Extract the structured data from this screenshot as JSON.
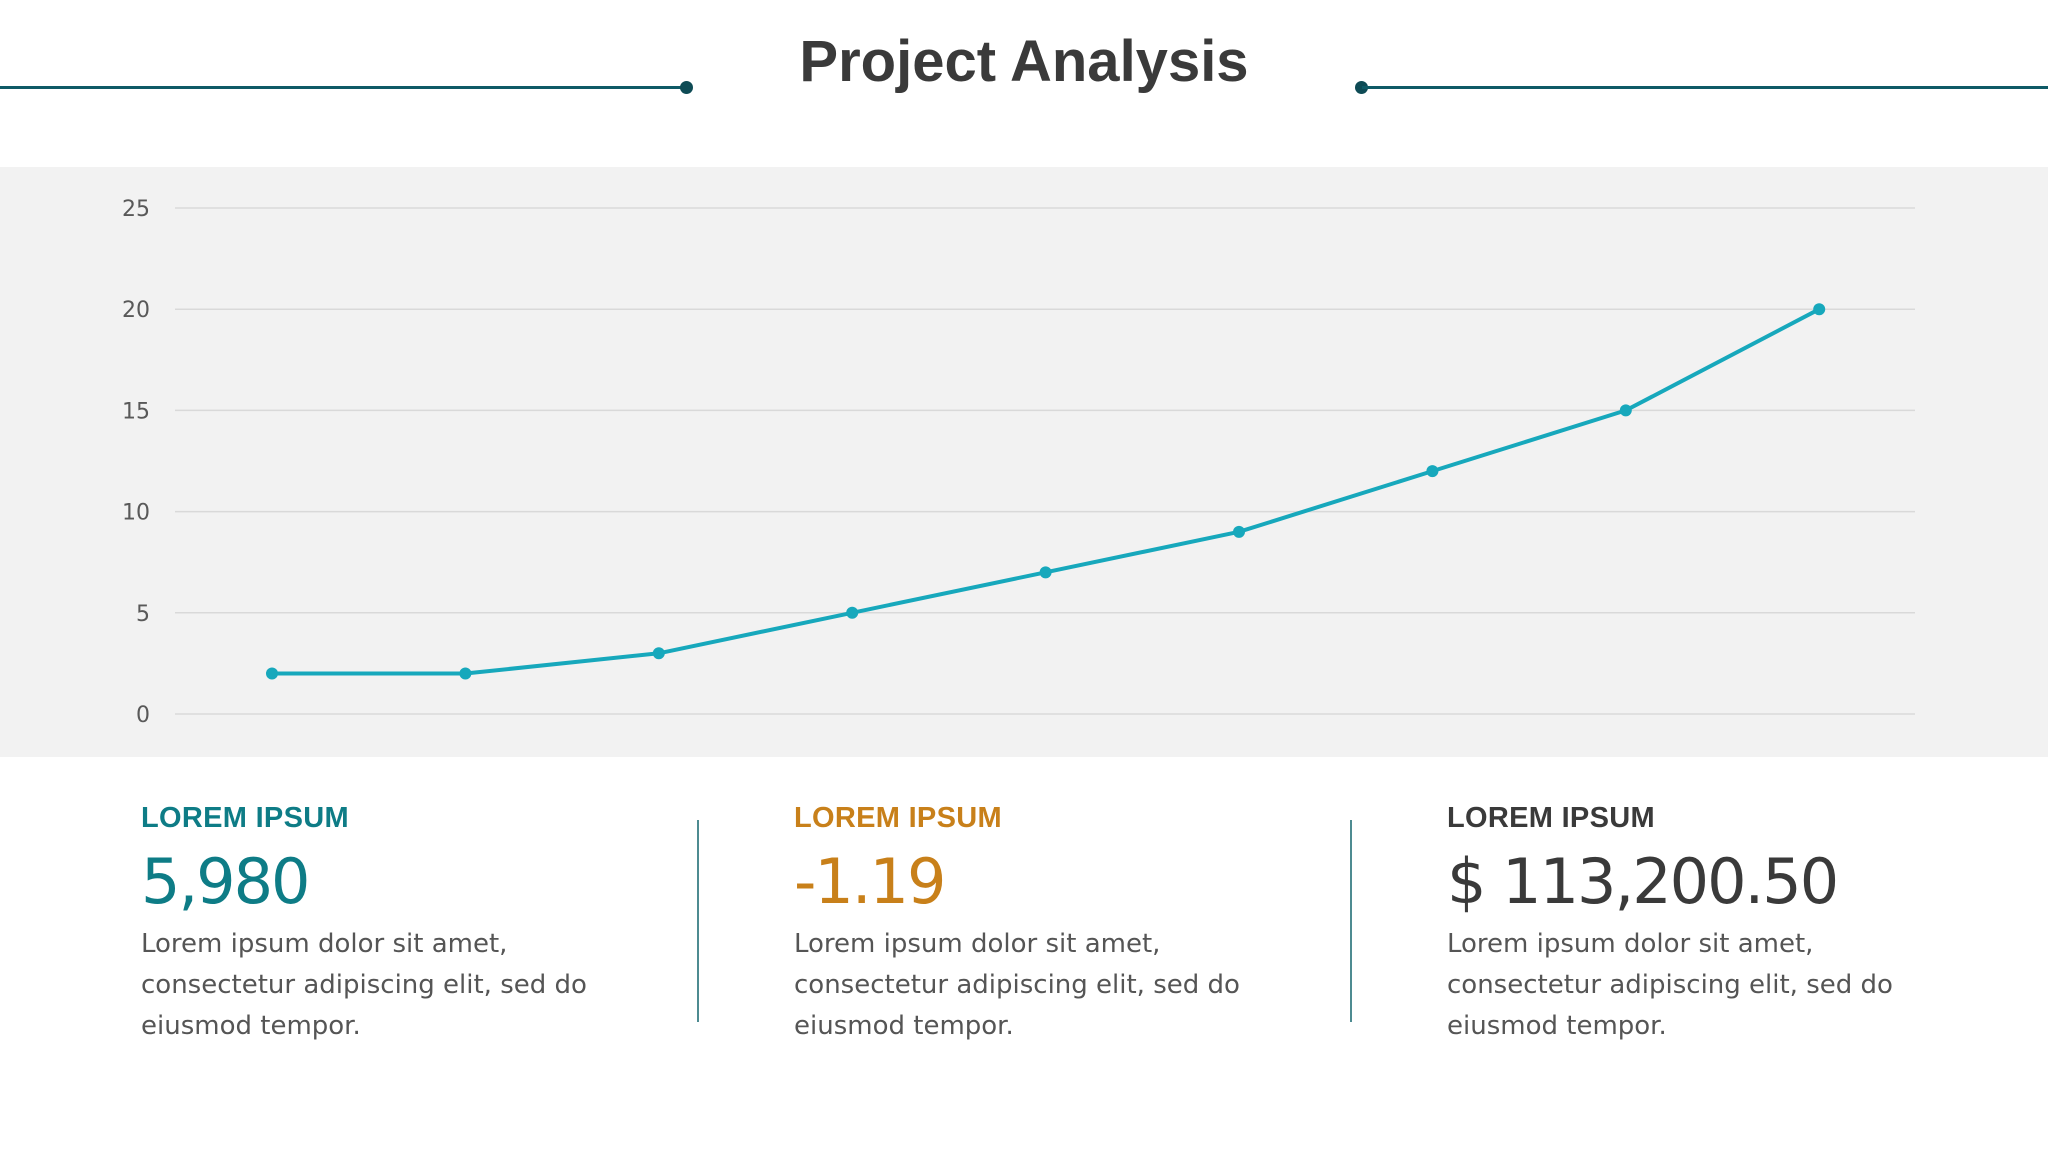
{
  "header": {
    "title": "Project Analysis"
  },
  "colors": {
    "accent_teal": "#0e7c86",
    "accent_orange": "#c8801a",
    "dark_gray": "#3a3a3a",
    "line_series": "#17a8bc",
    "title_rule": "#0e5a66"
  },
  "chart_data": {
    "type": "line",
    "title": "",
    "xlabel": "",
    "ylabel": "",
    "categories": [
      "",
      "",
      "",
      "",
      "",
      "",
      "",
      "",
      ""
    ],
    "series": [
      {
        "values": [
          2,
          2,
          3,
          5,
          7,
          9,
          12,
          15,
          20
        ]
      }
    ],
    "ylim": [
      0,
      25
    ],
    "yticks": [
      "0",
      "5",
      "10",
      "15",
      "20",
      "25"
    ],
    "grid": true,
    "legend": "none",
    "markers": true
  },
  "kpis": [
    {
      "title": "LOREM IPSUM",
      "value": "5,980",
      "description": "Lorem ipsum dolor sit amet, consectetur adipiscing elit, sed do eiusmod tempor.",
      "color": "#0e7c86"
    },
    {
      "title": "LOREM IPSUM",
      "value": "-1.19",
      "description": "Lorem ipsum dolor sit amet, consectetur adipiscing elit, sed do eiusmod tempor.",
      "color": "#c8801a"
    },
    {
      "title": "LOREM IPSUM",
      "value": "$ 113,200.50",
      "description": "Lorem ipsum dolor sit amet, consectetur adipiscing elit, sed do eiusmod tempor.",
      "color": "#3a3a3a"
    }
  ]
}
